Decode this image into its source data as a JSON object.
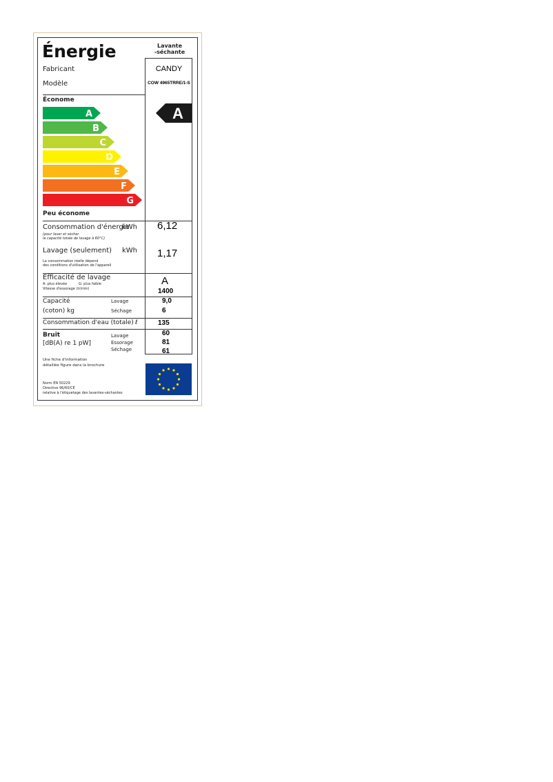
{
  "header": {
    "title": "Énergie",
    "product_type": [
      "Lavante",
      "-séchante"
    ]
  },
  "manufacturer": {
    "label": "Fabricant",
    "value": "CANDY"
  },
  "model": {
    "label": "Modèle",
    "value": "COW 4965TRRE/1-S"
  },
  "scale": {
    "top": "Économe",
    "classes": [
      "A",
      "B",
      "C",
      "D",
      "E",
      "F",
      "G"
    ],
    "bottom": "Peu économe",
    "rating": "A"
  },
  "energy": {
    "label": "Consommation d'énergie",
    "unit": "kWh",
    "note": [
      "(pour laver et sécher",
      "la capacité totale de lavage à 60°C)"
    ],
    "value": "6,12"
  },
  "wash_energy": {
    "label": "Lavage (seulement)",
    "unit": "kWh",
    "note": [
      "La consommation réelle dépend",
      "des conditions d'utilisation de l'appareil"
    ],
    "value": "1,17"
  },
  "efficiency": {
    "label": "Efficacité de lavage",
    "best": "A: plus élevée",
    "worst": "G: plus faible",
    "spin_label": "Vitesse d'essorage (tr/min)",
    "value": "A",
    "spin_value": "1400"
  },
  "capacity": {
    "label": [
      "Capacité",
      "(coton) kg"
    ],
    "sublabels": [
      "Lavage",
      "Séchage"
    ],
    "values": [
      "9,0",
      "6"
    ]
  },
  "water": {
    "label": "Consommation d'eau (totale)",
    "unit": "ℓ",
    "value": "135"
  },
  "noise": {
    "label": "Bruit",
    "unit": "[dB(A) re 1 pW]",
    "sublabels": [
      "Lavage",
      "Essorage",
      "Séchage"
    ],
    "values": [
      "60",
      "81",
      "61"
    ]
  },
  "footer": {
    "info": [
      "Une fiche d'information",
      "détaillée figure dans la brochure"
    ],
    "norm": [
      "Norm EN 50229",
      "Directive 96/60/CE",
      "relative à l'étiquetage des lavantes-séchantes"
    ]
  }
}
